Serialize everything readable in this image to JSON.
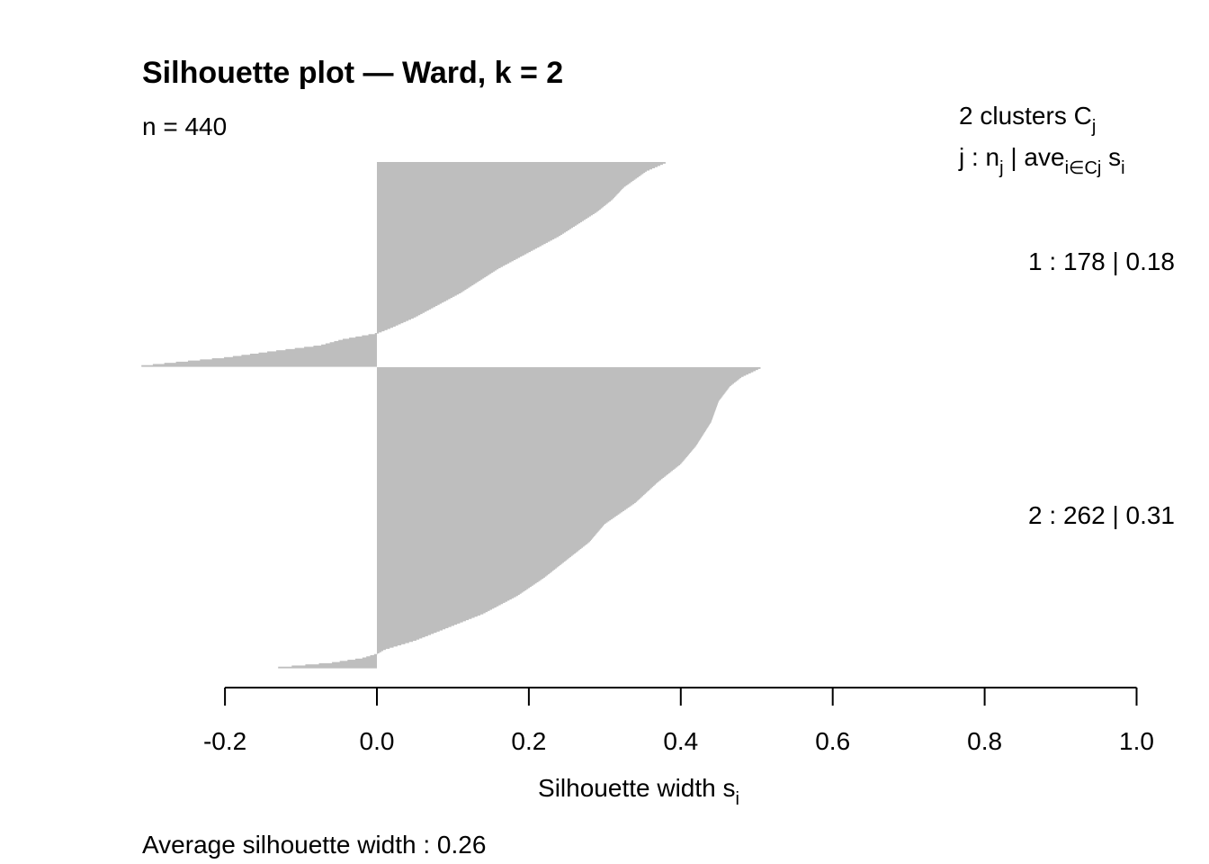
{
  "chart_data": {
    "type": "bar",
    "orientation": "horizontal",
    "title": "Silhouette plot — Ward, k = 2",
    "n_label": "n = 440",
    "xlabel": "Silhouette width",
    "xlabel_sub": "i",
    "xlabel_var": "s",
    "xlim": [
      -0.2,
      1.0
    ],
    "xticks": [
      -0.2,
      0.0,
      0.2,
      0.4,
      0.6,
      0.8,
      1.0
    ],
    "xtick_labels": [
      "-0.2",
      "0.0",
      "0.2",
      "0.4",
      "0.6",
      "0.8",
      "1.0"
    ],
    "legend": {
      "placement": "top-right",
      "line1_main": "2  clusters  C",
      "line1_sub": "j",
      "line2_a": "j :  n",
      "line2_a_sub": "j",
      "line2_b": " | ave",
      "line2_b_sub": "i∈Cj",
      "line2_c": "  s",
      "line2_c_sub": "i"
    },
    "clusters": [
      {
        "id": 1,
        "label": "1 :   178  |  0.18",
        "size": 178,
        "average": 0.18,
        "profile": [
          [
            0,
            0.38
          ],
          [
            0.04,
            0.355
          ],
          [
            0.08,
            0.34
          ],
          [
            0.12,
            0.325
          ],
          [
            0.18,
            0.31
          ],
          [
            0.24,
            0.29
          ],
          [
            0.3,
            0.265
          ],
          [
            0.36,
            0.24
          ],
          [
            0.42,
            0.21
          ],
          [
            0.47,
            0.185
          ],
          [
            0.52,
            0.16
          ],
          [
            0.58,
            0.135
          ],
          [
            0.64,
            0.11
          ],
          [
            0.7,
            0.08
          ],
          [
            0.76,
            0.05
          ],
          [
            0.81,
            0.02
          ],
          [
            0.84,
            0.0
          ],
          [
            0.87,
            -0.045
          ],
          [
            0.9,
            -0.075
          ],
          [
            0.93,
            -0.14
          ],
          [
            0.96,
            -0.2
          ],
          [
            0.985,
            -0.27
          ],
          [
            1.0,
            -0.31
          ]
        ],
        "color": "#bebebe"
      },
      {
        "id": 2,
        "label": "2 :   262  |  0.31",
        "size": 262,
        "average": 0.31,
        "profile": [
          [
            0,
            0.505
          ],
          [
            0.03,
            0.48
          ],
          [
            0.06,
            0.465
          ],
          [
            0.11,
            0.45
          ],
          [
            0.18,
            0.44
          ],
          [
            0.26,
            0.42
          ],
          [
            0.32,
            0.4
          ],
          [
            0.38,
            0.37
          ],
          [
            0.45,
            0.34
          ],
          [
            0.52,
            0.3
          ],
          [
            0.58,
            0.28
          ],
          [
            0.64,
            0.25
          ],
          [
            0.7,
            0.22
          ],
          [
            0.76,
            0.185
          ],
          [
            0.82,
            0.14
          ],
          [
            0.87,
            0.09
          ],
          [
            0.91,
            0.05
          ],
          [
            0.94,
            0.01
          ],
          [
            0.955,
            0.0
          ],
          [
            0.97,
            -0.02
          ],
          [
            0.985,
            -0.06
          ],
          [
            1.0,
            -0.13
          ]
        ],
        "color": "#bebebe"
      }
    ],
    "footer_label": "Average silhouette width :  0.26",
    "grid": false
  }
}
